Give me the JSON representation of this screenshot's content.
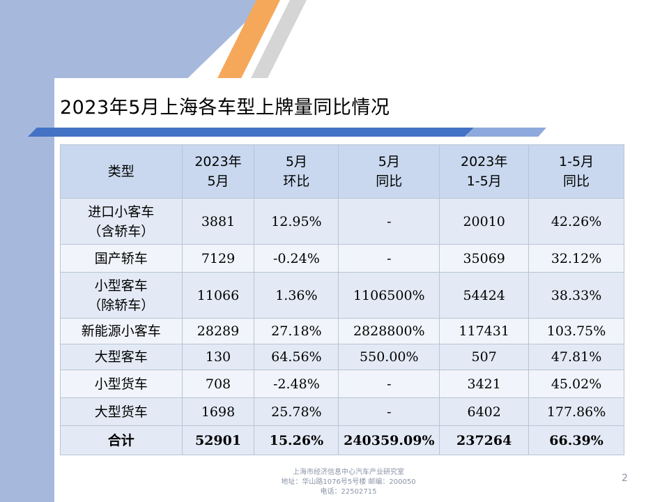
{
  "title": "2023年5月上海各车型上牌量同比情况",
  "table": {
    "headers": [
      [
        "类型"
      ],
      [
        "2023年",
        "5月"
      ],
      [
        "5月",
        "环比"
      ],
      [
        "5月",
        "同比"
      ],
      [
        "2023年",
        "1-5月"
      ],
      [
        "1-5月",
        "同比"
      ]
    ],
    "rows": [
      {
        "type": [
          "进口小客车",
          "（含轿车）"
        ],
        "may": "3881",
        "mom": "12.95%",
        "yoy": "-",
        "ytd": "20010",
        "ytd_yoy": "42.26%"
      },
      {
        "type": [
          "国产轿车"
        ],
        "may": "7129",
        "mom": "-0.24%",
        "yoy": "-",
        "ytd": "35069",
        "ytd_yoy": "32.12%"
      },
      {
        "type": [
          "小型客车",
          "（除轿车）"
        ],
        "may": "11066",
        "mom": "1.36%",
        "yoy": "1106500%",
        "ytd": "54424",
        "ytd_yoy": "38.33%"
      },
      {
        "type": [
          "新能源小客车"
        ],
        "may": "28289",
        "mom": "27.18%",
        "yoy": "2828800%",
        "ytd": "117431",
        "ytd_yoy": "103.75%"
      },
      {
        "type": [
          "大型客车"
        ],
        "may": "130",
        "mom": "64.56%",
        "yoy": "550.00%",
        "ytd": "507",
        "ytd_yoy": "47.81%"
      },
      {
        "type": [
          "小型货车"
        ],
        "may": "708",
        "mom": "-2.48%",
        "yoy": "-",
        "ytd": "3421",
        "ytd_yoy": "45.02%"
      },
      {
        "type": [
          "大型货车"
        ],
        "may": "1698",
        "mom": "25.78%",
        "yoy": "-",
        "ytd": "6402",
        "ytd_yoy": "177.86%"
      }
    ],
    "total": {
      "type": "合计",
      "may": "52901",
      "mom": "15.26%",
      "yoy": "240359.09%",
      "ytd": "237264",
      "ytd_yoy": "66.39%"
    }
  },
  "footer": {
    "line1": "上海市经济信息中心汽车产业研究室",
    "line2": "地址：华山路1076号5号楼   邮编：200050",
    "line3": "电话：22502715"
  },
  "page_number": "2"
}
